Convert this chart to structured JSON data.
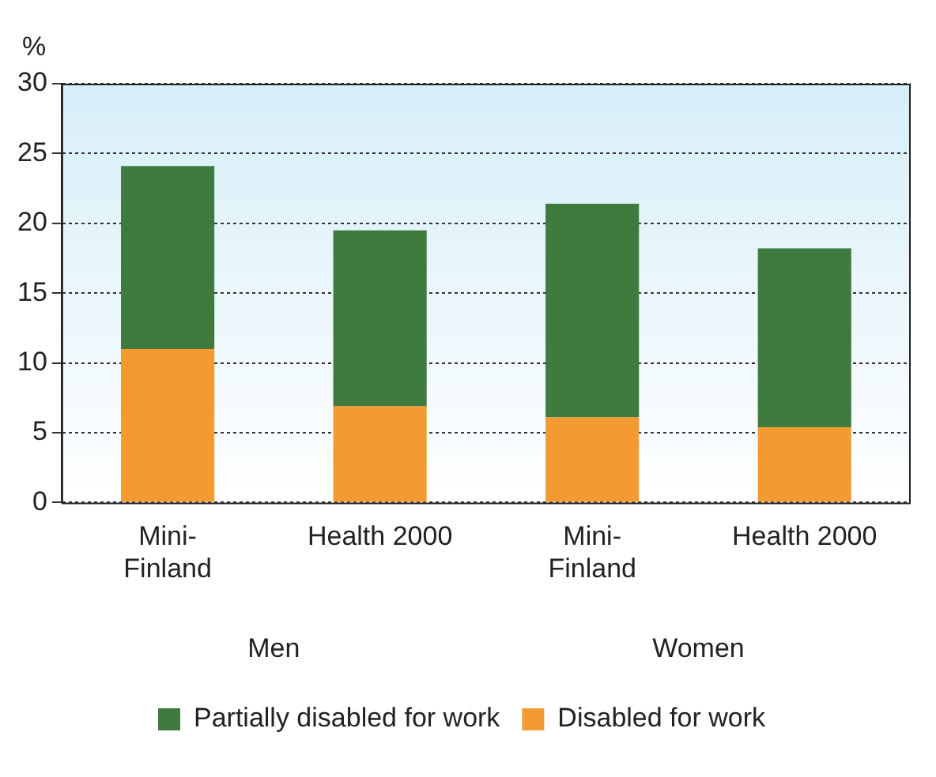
{
  "chart_data": {
    "type": "bar",
    "stacked": true,
    "ylabel": "%",
    "categories": [
      "Mini-Finland",
      "Health 2000",
      "Mini-Finland",
      "Health 2000"
    ],
    "annotations": [
      "Men",
      "Women"
    ],
    "series": [
      {
        "name": "Disabled for work",
        "color": "#f39a32",
        "values": [
          11,
          6.9,
          6.1,
          5.4
        ]
      },
      {
        "name": "Partially disabled for work",
        "color": "#3f7b3f",
        "values": [
          13.1,
          12.6,
          15.3,
          12.8
        ]
      }
    ],
    "ylim": [
      0,
      30
    ],
    "yticks": [
      0,
      5,
      10,
      15,
      20,
      25,
      30
    ],
    "grid": "y",
    "legend": "bottom"
  }
}
